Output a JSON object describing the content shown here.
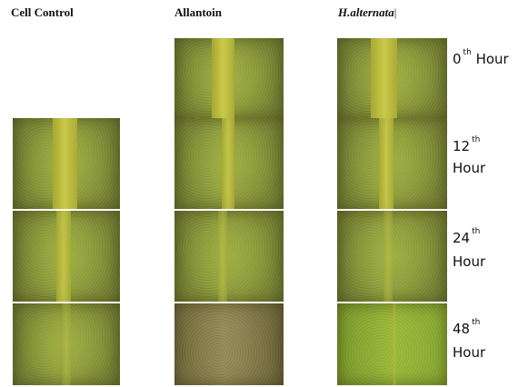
{
  "columns": [
    "Cell Control",
    "Allantoin",
    "H.alternata"
  ],
  "rows": [
    {
      "ordinal": "0",
      "suffix": "th",
      "label": "Hour"
    },
    {
      "ordinal": "12",
      "suffix": "th",
      "label": "Hour"
    },
    {
      "ordinal": "24",
      "suffix": "th",
      "label": "Hour"
    },
    {
      "ordinal": "48",
      "suffix": "th",
      "label": "Hour"
    }
  ]
}
